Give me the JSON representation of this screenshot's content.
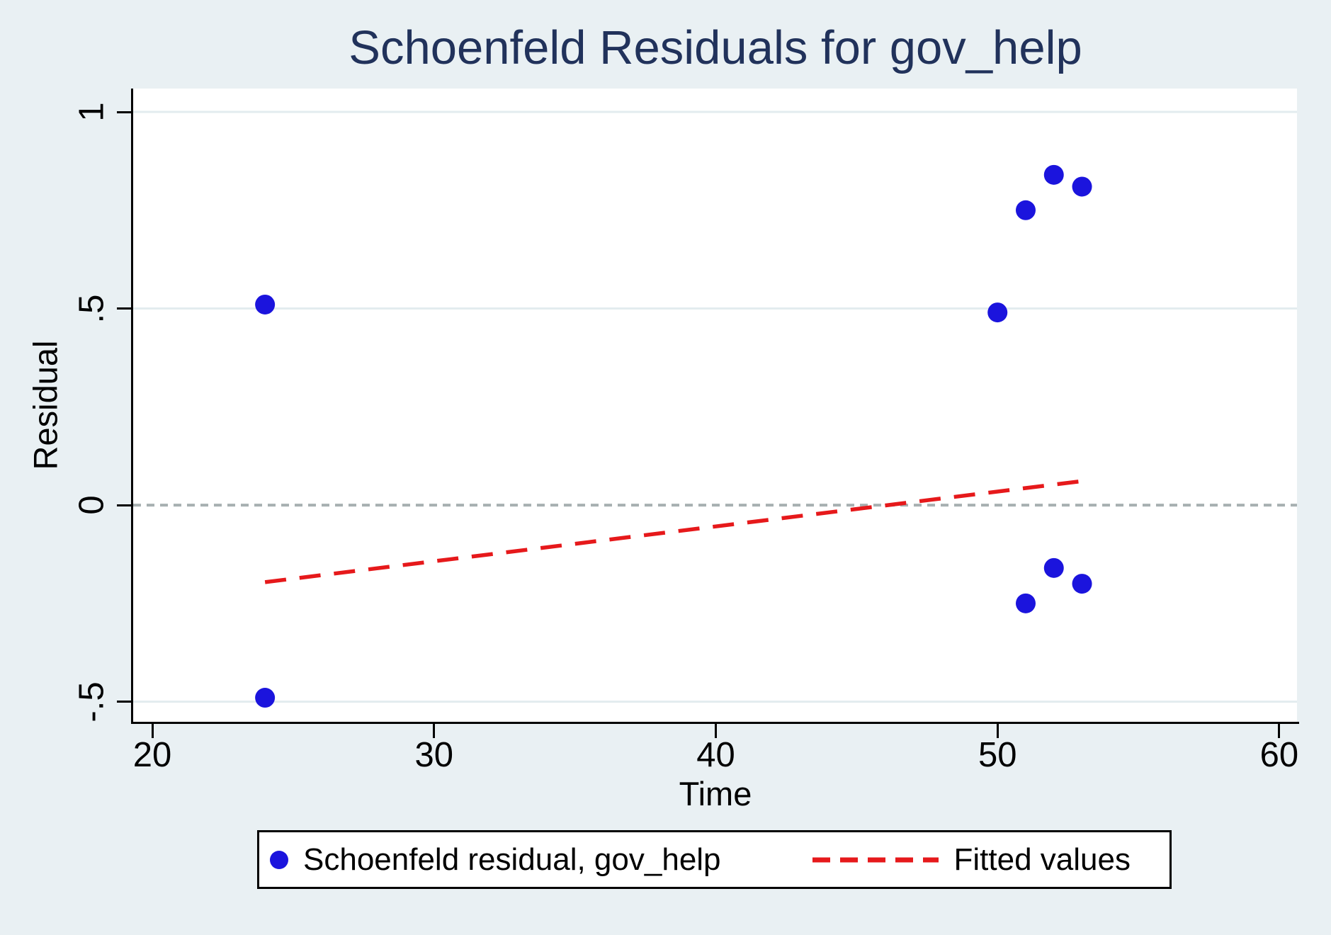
{
  "chart_data": {
    "type": "scatter",
    "title": "Schoenfeld Residuals for gov_help",
    "xlabel": "Time",
    "ylabel": "Residual",
    "xlim": [
      19.32,
      60.63
    ],
    "ylim": [
      -0.553,
      1.0595
    ],
    "x_ticks": [
      {
        "v": 20,
        "label": "20"
      },
      {
        "v": 30,
        "label": "30"
      },
      {
        "v": 40,
        "label": "40"
      },
      {
        "v": 50,
        "label": "50"
      },
      {
        "v": 60,
        "label": "60"
      }
    ],
    "y_ticks": [
      {
        "v": 1,
        "label": "1"
      },
      {
        "v": 0.5,
        "label": ".5"
      },
      {
        "v": 0,
        "label": "0"
      },
      {
        "v": -0.5,
        "label": "-.5"
      }
    ],
    "gridlines_y": [
      1,
      0.5,
      -0.5
    ],
    "reference_line_y": 0,
    "grid": true,
    "legend_position": "bottom",
    "series": [
      {
        "name": "Schoenfeld residual, gov_help",
        "type": "scatter",
        "points": [
          [
            24,
            0.51
          ],
          [
            24,
            -0.49
          ],
          [
            50,
            0.49
          ],
          [
            51,
            0.75
          ],
          [
            52,
            0.84
          ],
          [
            53,
            0.81
          ],
          [
            51,
            -0.25
          ],
          [
            52,
            -0.16
          ],
          [
            53,
            -0.2
          ]
        ]
      },
      {
        "name": "Fitted values",
        "type": "line",
        "dashed": true,
        "points": [
          [
            24,
            -0.196
          ],
          [
            53,
            0.061
          ]
        ]
      }
    ],
    "colors": {
      "marker": "#1b14dd",
      "fitted": "#e6191b",
      "reference": "#a7b0b1",
      "gridline": "#e3ecef",
      "title": "#21325b",
      "background": "#e9f0f3",
      "plot_background": "#ffffff",
      "axis": "#000000",
      "text": "#000000",
      "legend_border": "#000000",
      "legend_background": "#ffffff"
    }
  }
}
